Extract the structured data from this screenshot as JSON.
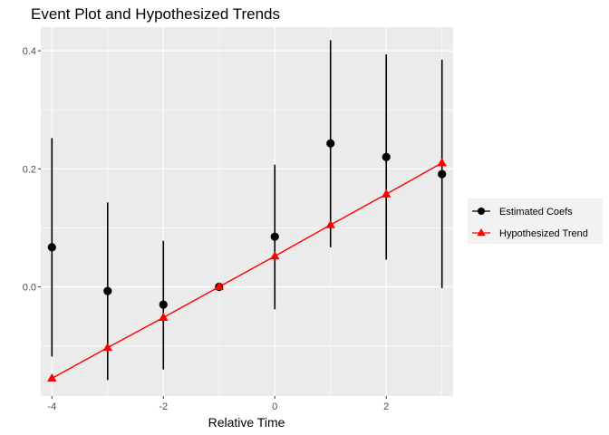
{
  "chart_data": {
    "type": "scatter",
    "title": "Event Plot and Hypothesized Trends",
    "xlabel": "Relative Time",
    "ylabel": "",
    "xlim": [
      -4.2,
      3.2
    ],
    "ylim": [
      -0.185,
      0.44
    ],
    "x_ticks": [
      -4,
      -2,
      0,
      2
    ],
    "x_tick_labels": [
      "-4",
      "-2",
      "0",
      "2"
    ],
    "y_ticks": [
      0.0,
      0.2,
      0.4
    ],
    "y_tick_labels": [
      "0.0",
      "0.2",
      "0.4"
    ],
    "grid": true,
    "legend_position": "right",
    "series": [
      {
        "name": "Estimated Coefs",
        "kind": "point-errorbar",
        "color": "#000000",
        "marker": "circle",
        "x": [
          -4,
          -3,
          -2,
          -1,
          0,
          1,
          2,
          3
        ],
        "y": [
          0.067,
          -0.007,
          -0.03,
          0.0,
          0.085,
          0.243,
          0.22,
          0.191
        ],
        "lower": [
          -0.118,
          -0.158,
          -0.14,
          0.0,
          -0.038,
          0.067,
          0.046,
          -0.002
        ],
        "upper": [
          0.252,
          0.143,
          0.078,
          0.0,
          0.207,
          0.418,
          0.394,
          0.385
        ]
      },
      {
        "name": "Hypothesized Trend",
        "kind": "line-points",
        "color": "#ff0000",
        "marker": "triangle",
        "x": [
          -4,
          -3,
          -2,
          -1,
          0,
          1,
          2,
          3
        ],
        "y": [
          -0.155,
          -0.103,
          -0.052,
          0.0,
          0.052,
          0.105,
          0.157,
          0.21
        ]
      }
    ]
  }
}
